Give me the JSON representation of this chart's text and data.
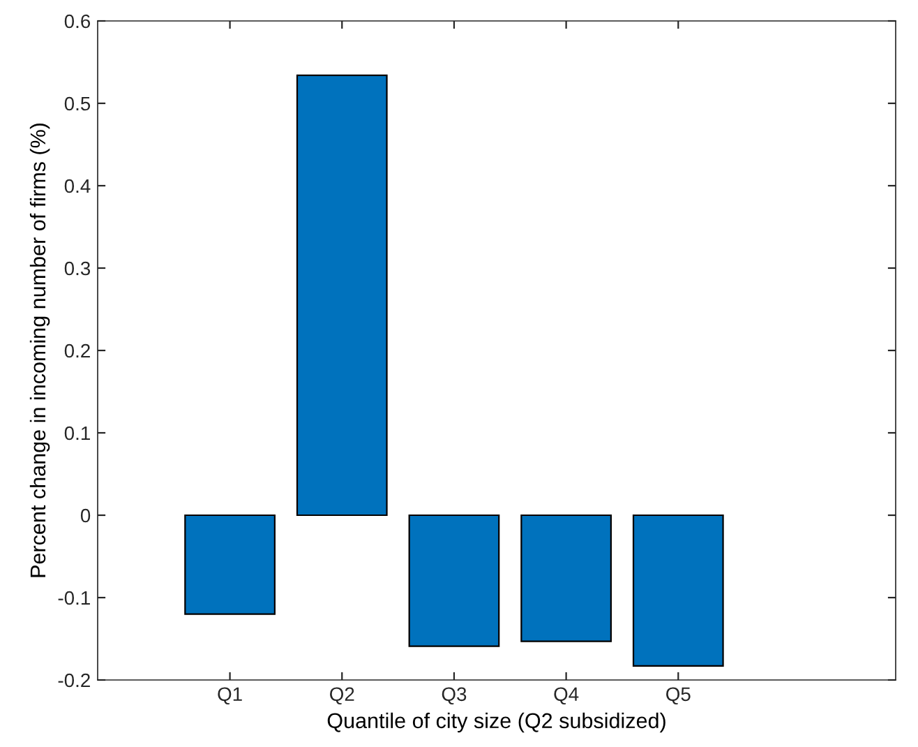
{
  "chart_data": {
    "type": "bar",
    "xlabel": "Quantile of city size (Q2 subsidized)",
    "ylabel": "Percent change in incoming number of firms (%)",
    "categories": [
      "Q1",
      "Q2",
      "Q3",
      "Q4",
      "Q5"
    ],
    "values": [
      -0.12,
      0.534,
      -0.159,
      -0.153,
      -0.183
    ],
    "color": "#0072bd",
    "ylim": [
      -0.2,
      0.6
    ],
    "yticks": [
      {
        "value": -0.2,
        "label": "-0.2"
      },
      {
        "value": -0.1,
        "label": "-0.1"
      },
      0,
      0.1,
      0.2,
      0.3,
      0.4,
      0.5,
      0.6
    ],
    "grid": false
  }
}
